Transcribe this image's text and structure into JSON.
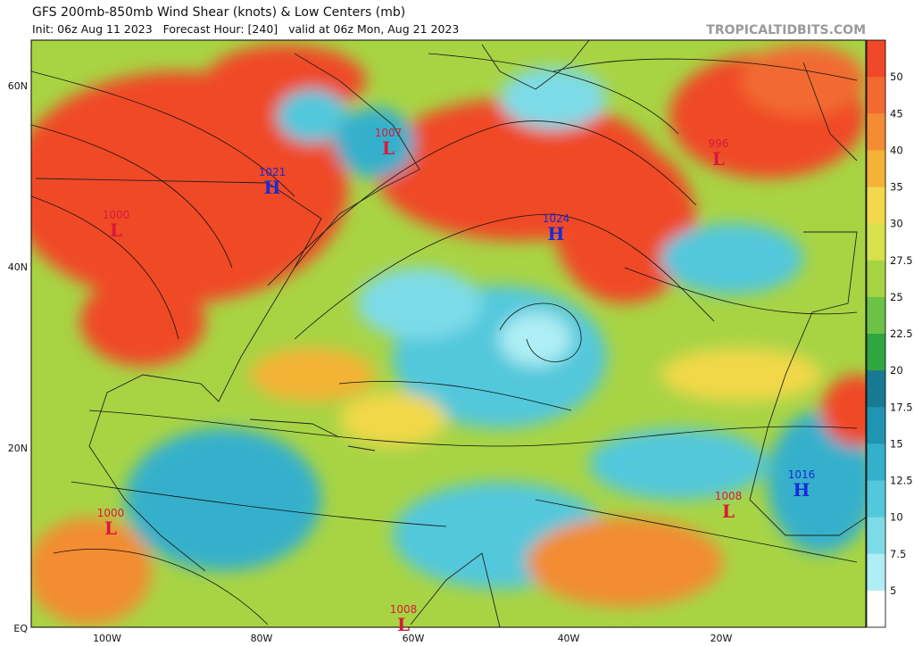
{
  "header": {
    "title": "GFS 200mb-850mb Wind Shear (knots) & Low Centers (mb)",
    "subtitle": "Init: 06z Aug 11 2023   Forecast Hour: [240]   valid at 06z Mon, Aug 21 2023",
    "site": "TROPICALTIDBITS.COM"
  },
  "axes": {
    "latitudes": [
      "60N",
      "40N",
      "20N",
      "EQ"
    ],
    "longitudes": [
      "100W",
      "80W",
      "60W",
      "40W",
      "20W"
    ]
  },
  "colorbar": {
    "labels": [
      "50",
      "45",
      "40",
      "35",
      "30",
      "27.5",
      "25",
      "22.5",
      "20",
      "17.5",
      "15",
      "12.5",
      "10",
      "7.5",
      "5"
    ],
    "colors": [
      "#f04828",
      "#f26a30",
      "#f38c32",
      "#f4b236",
      "#f2d84a",
      "#d8e24a",
      "#a8d444",
      "#6cc244",
      "#2fa640",
      "#177a92",
      "#1f95b2",
      "#34b0cc",
      "#52c8dc",
      "#7ddbe8",
      "#aeeef4",
      "#ffffff"
    ]
  },
  "centers": [
    {
      "pressure": "1021",
      "symbol": "H"
    },
    {
      "pressure": "1007",
      "symbol": "L"
    },
    {
      "pressure": "1000",
      "symbol": "L"
    },
    {
      "pressure": "1024",
      "symbol": "H"
    },
    {
      "pressure": "996",
      "symbol": "L"
    },
    {
      "pressure": "1000",
      "symbol": "L"
    },
    {
      "pressure": "1008",
      "symbol": "L"
    },
    {
      "pressure": "1016",
      "symbol": "H"
    },
    {
      "pressure": "1008",
      "symbol": "L"
    }
  ]
}
